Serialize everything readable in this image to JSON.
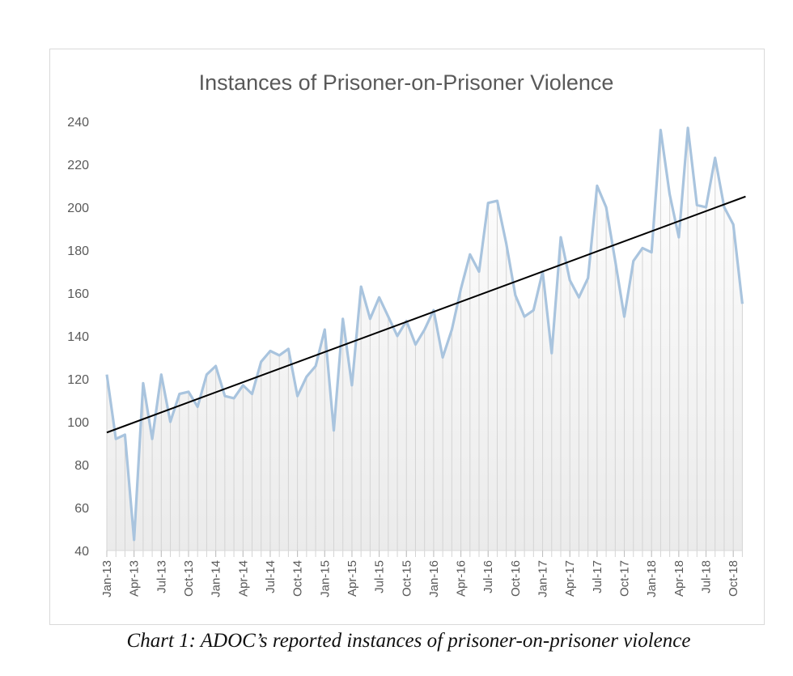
{
  "chart_data": {
    "type": "line",
    "title": "Instances of Prisoner-on-Prisoner Violence",
    "xlabel": "",
    "ylabel": "",
    "ylim": [
      40,
      240
    ],
    "yticks": [
      40,
      60,
      80,
      100,
      120,
      140,
      160,
      180,
      200,
      220,
      240
    ],
    "grid": "vertical drop lines per month",
    "legend": "none",
    "xtick_labels": [
      "Jan-13",
      "Apr-13",
      "Jul-13",
      "Oct-13",
      "Jan-14",
      "Apr-14",
      "Jul-14",
      "Oct-14",
      "Jan-15",
      "Apr-15",
      "Jul-15",
      "Oct-15",
      "Jan-16",
      "Apr-16",
      "Jul-16",
      "Oct-16",
      "Jan-17",
      "Apr-17",
      "Jul-17",
      "Oct-17",
      "Jan-18",
      "Apr-18",
      "Jul-18",
      "Oct-18"
    ],
    "x": [
      "Jan-13",
      "Feb-13",
      "Mar-13",
      "Apr-13",
      "May-13",
      "Jun-13",
      "Jul-13",
      "Aug-13",
      "Sep-13",
      "Oct-13",
      "Nov-13",
      "Dec-13",
      "Jan-14",
      "Feb-14",
      "Mar-14",
      "Apr-14",
      "May-14",
      "Jun-14",
      "Jul-14",
      "Aug-14",
      "Sep-14",
      "Oct-14",
      "Nov-14",
      "Dec-14",
      "Jan-15",
      "Feb-15",
      "Mar-15",
      "Apr-15",
      "May-15",
      "Jun-15",
      "Jul-15",
      "Aug-15",
      "Sep-15",
      "Oct-15",
      "Nov-15",
      "Dec-15",
      "Jan-16",
      "Feb-16",
      "Mar-16",
      "Apr-16",
      "May-16",
      "Jun-16",
      "Jul-16",
      "Aug-16",
      "Sep-16",
      "Oct-16",
      "Nov-16",
      "Dec-16",
      "Jan-17",
      "Feb-17",
      "Mar-17",
      "Apr-17",
      "May-17",
      "Jun-17",
      "Jul-17",
      "Aug-17",
      "Sep-17",
      "Oct-17",
      "Nov-17",
      "Dec-17",
      "Jan-18",
      "Feb-18",
      "Mar-18",
      "Apr-18",
      "May-18",
      "Jun-18",
      "Jul-18",
      "Aug-18",
      "Sep-18",
      "Oct-18",
      "Nov-18"
    ],
    "series": [
      {
        "name": "Instances",
        "color": "#a9c4de",
        "values": [
          122,
          92,
          94,
          45,
          118,
          92,
          122,
          100,
          113,
          114,
          107,
          122,
          126,
          112,
          111,
          117,
          113,
          128,
          133,
          131,
          134,
          112,
          121,
          126,
          143,
          96,
          148,
          117,
          163,
          148,
          158,
          149,
          140,
          147,
          136,
          143,
          152,
          130,
          143,
          162,
          178,
          170,
          202,
          203,
          183,
          159,
          149,
          152,
          170,
          132,
          186,
          166,
          158,
          167,
          210,
          200,
          175,
          149,
          175,
          181,
          179,
          236,
          206,
          186,
          237,
          201,
          200,
          223,
          200,
          192,
          155
        ]
      }
    ],
    "trendline": {
      "type": "linear",
      "color": "#000000",
      "start": 95,
      "end": 205
    }
  },
  "caption": "Chart 1: ADOC’s reported instances of prisoner-on-prisoner violence"
}
